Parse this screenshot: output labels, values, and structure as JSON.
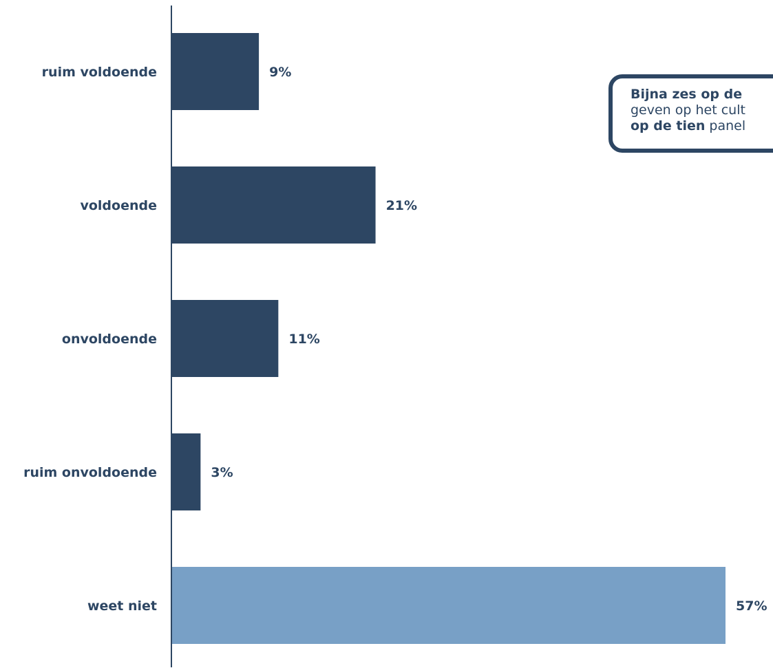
{
  "chart_data": {
    "type": "bar",
    "orientation": "horizontal",
    "categories": [
      "ruim voldoende",
      "voldoende",
      "onvoldoende",
      "ruim onvoldoende",
      "weet niet"
    ],
    "values": [
      9,
      21,
      11,
      3,
      57
    ],
    "value_labels": [
      "9%",
      "21%",
      "11%",
      "3%",
      "57%"
    ],
    "xlim": [
      0,
      57
    ],
    "grid": false,
    "legend": "none",
    "colors": {
      "primary": "#2d4663",
      "highlight": "#78a0c6",
      "axis": "#2d4663",
      "text": "#2d4663"
    },
    "highlight_index": 4
  },
  "callout": {
    "line1_bold": "Bijna zes op de",
    "line2_text": "geven op het cult",
    "line3_bold": "op de tien",
    "line3_text": " panel"
  }
}
